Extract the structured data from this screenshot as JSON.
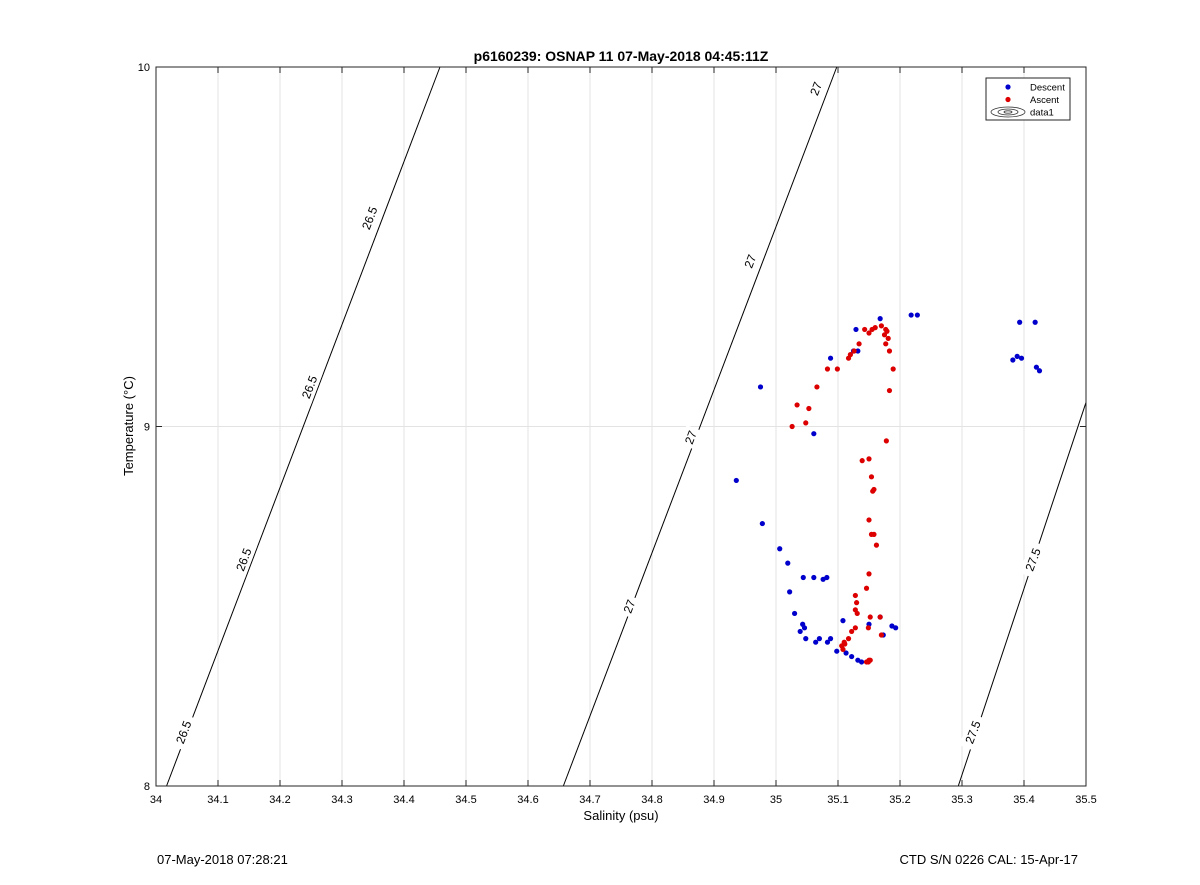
{
  "chart_data": {
    "type": "scatter",
    "title": "p6160239: OSNAP 11 07-May-2018 04:45:11Z",
    "xlabel": "Salinity (psu)",
    "ylabel": "Temperature (°C)",
    "xlim": [
      34,
      35.5
    ],
    "ylim": [
      8,
      10
    ],
    "xticks": [
      34,
      34.1,
      34.2,
      34.3,
      34.4,
      34.5,
      34.6,
      34.7,
      34.8,
      34.9,
      35,
      35.1,
      35.2,
      35.3,
      35.4,
      35.5
    ],
    "xtick_labels": [
      "34",
      "34.1",
      "34.2",
      "34.3",
      "34.4",
      "34.5",
      "34.6",
      "34.7",
      "34.8",
      "34.9",
      "35",
      "35.1",
      "35.2",
      "35.3",
      "35.4",
      "35.5"
    ],
    "yticks": [
      8,
      9,
      10
    ],
    "ytick_labels": [
      "8",
      "9",
      "10"
    ],
    "grid": true,
    "legend_position": "top-right",
    "density_contours": [
      {
        "label": "26.5",
        "points": [
          [
            34.017,
            8.0
          ],
          [
            34.458,
            10.0
          ]
        ]
      },
      {
        "label": "27",
        "points": [
          [
            34.657,
            8.0
          ],
          [
            35.098,
            10.0
          ]
        ]
      },
      {
        "label": "27.5",
        "points": [
          [
            35.294,
            8.0
          ],
          [
            35.5,
            9.067
          ]
        ]
      }
    ],
    "contour_labels": [
      {
        "text": "26.5",
        "x": 34.044,
        "y": 8.15
      },
      {
        "text": "26.5",
        "x": 34.141,
        "y": 8.63
      },
      {
        "text": "26.5",
        "x": 34.247,
        "y": 9.11
      },
      {
        "text": "26.5",
        "x": 34.344,
        "y": 9.58
      },
      {
        "text": "27",
        "x": 34.763,
        "y": 8.5
      },
      {
        "text": "27",
        "x": 34.862,
        "y": 8.97
      },
      {
        "text": "27",
        "x": 34.958,
        "y": 9.46
      },
      {
        "text": "27",
        "x": 35.064,
        "y": 9.94
      },
      {
        "text": "27.5",
        "x": 35.317,
        "y": 8.15
      },
      {
        "text": "27.5",
        "x": 35.414,
        "y": 8.63
      }
    ],
    "series": [
      {
        "name": "Descent",
        "color": "#0000cc",
        "points": [
          [
            34.975,
            9.11
          ],
          [
            34.936,
            8.85
          ],
          [
            34.978,
            8.73
          ],
          [
            35.006,
            8.66
          ],
          [
            35.019,
            8.62
          ],
          [
            35.022,
            8.54
          ],
          [
            35.044,
            8.58
          ],
          [
            35.061,
            8.58
          ],
          [
            35.076,
            8.575
          ],
          [
            35.082,
            8.58
          ],
          [
            35.03,
            8.48
          ],
          [
            35.039,
            8.43
          ],
          [
            35.043,
            8.45
          ],
          [
            35.046,
            8.44
          ],
          [
            35.048,
            8.41
          ],
          [
            35.064,
            8.4
          ],
          [
            35.07,
            8.41
          ],
          [
            35.083,
            8.4
          ],
          [
            35.088,
            8.41
          ],
          [
            35.098,
            8.375
          ],
          [
            35.108,
            8.46
          ],
          [
            35.113,
            8.37
          ],
          [
            35.122,
            8.36
          ],
          [
            35.132,
            8.35
          ],
          [
            35.138,
            8.345
          ],
          [
            35.15,
            8.45
          ],
          [
            35.168,
            8.47
          ],
          [
            35.187,
            8.445
          ],
          [
            35.193,
            8.44
          ],
          [
            35.173,
            8.42
          ],
          [
            35.061,
            8.98
          ],
          [
            35.088,
            9.19
          ],
          [
            35.129,
            9.27
          ],
          [
            35.125,
            9.21
          ],
          [
            35.132,
            9.21
          ],
          [
            35.168,
            9.3
          ],
          [
            35.218,
            9.31
          ],
          [
            35.228,
            9.31
          ],
          [
            35.393,
            9.29
          ],
          [
            35.418,
            9.29
          ],
          [
            35.382,
            9.185
          ],
          [
            35.389,
            9.195
          ],
          [
            35.396,
            9.19
          ],
          [
            35.42,
            9.165
          ],
          [
            35.425,
            9.155
          ]
        ]
      },
      {
        "name": "Ascent",
        "color": "#dd0000",
        "points": [
          [
            35.026,
            9.0
          ],
          [
            35.034,
            9.06
          ],
          [
            35.048,
            9.01
          ],
          [
            35.053,
            9.05
          ],
          [
            35.066,
            9.11
          ],
          [
            35.083,
            9.16
          ],
          [
            35.099,
            9.16
          ],
          [
            35.117,
            9.19
          ],
          [
            35.12,
            9.2
          ],
          [
            35.126,
            9.21
          ],
          [
            35.134,
            9.23
          ],
          [
            35.143,
            9.27
          ],
          [
            35.15,
            9.26
          ],
          [
            35.155,
            9.27
          ],
          [
            35.16,
            9.275
          ],
          [
            35.17,
            9.28
          ],
          [
            35.175,
            9.255
          ],
          [
            35.177,
            9.27
          ],
          [
            35.179,
            9.265
          ],
          [
            35.181,
            9.245
          ],
          [
            35.177,
            9.23
          ],
          [
            35.183,
            9.21
          ],
          [
            35.189,
            9.16
          ],
          [
            35.183,
            9.1
          ],
          [
            35.178,
            8.96
          ],
          [
            35.15,
            8.91
          ],
          [
            35.139,
            8.905
          ],
          [
            35.154,
            8.86
          ],
          [
            35.156,
            8.82
          ],
          [
            35.158,
            8.825
          ],
          [
            35.15,
            8.74
          ],
          [
            35.154,
            8.7
          ],
          [
            35.158,
            8.7
          ],
          [
            35.162,
            8.67
          ],
          [
            35.15,
            8.59
          ],
          [
            35.146,
            8.55
          ],
          [
            35.128,
            8.53
          ],
          [
            35.13,
            8.51
          ],
          [
            35.128,
            8.49
          ],
          [
            35.131,
            8.48
          ],
          [
            35.152,
            8.47
          ],
          [
            35.149,
            8.44
          ],
          [
            35.168,
            8.47
          ],
          [
            35.17,
            8.42
          ],
          [
            35.128,
            8.44
          ],
          [
            35.122,
            8.43
          ],
          [
            35.117,
            8.41
          ],
          [
            35.11,
            8.4
          ],
          [
            35.106,
            8.39
          ],
          [
            35.111,
            8.395
          ],
          [
            35.108,
            8.38
          ],
          [
            35.146,
            8.345
          ],
          [
            35.15,
            8.35
          ],
          [
            35.152,
            8.35
          ],
          [
            35.149,
            8.345
          ]
        ]
      }
    ],
    "legend": [
      {
        "label": "Descent",
        "marker": "dot",
        "color": "#0000cc"
      },
      {
        "label": "Ascent",
        "marker": "dot",
        "color": "#dd0000"
      },
      {
        "label": "data1",
        "marker": "contour"
      }
    ]
  },
  "footer": {
    "left": "07-May-2018 07:28:21",
    "right": "CTD S/N 0226  CAL: 15-Apr-17"
  }
}
